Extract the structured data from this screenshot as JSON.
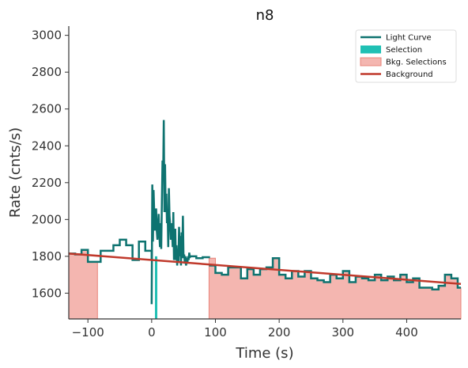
{
  "chart_data": {
    "type": "line",
    "title": "n8",
    "xlabel": "Time (s)",
    "ylabel": "Rate (cnts/s)",
    "xlim": [
      -130,
      485
    ],
    "ylim": [
      1460,
      3050
    ],
    "xticks": [
      -100,
      0,
      100,
      200,
      300,
      400
    ],
    "yticks": [
      1600,
      1800,
      2000,
      2200,
      2400,
      2600,
      2800,
      3000
    ],
    "grid": false,
    "legend_position": "top-right",
    "legend": [
      {
        "label": "Light Curve",
        "kind": "line",
        "color": "#0e7370"
      },
      {
        "label": "Selection",
        "kind": "patch",
        "color": "#20c0b4"
      },
      {
        "label": "Bkg. Selections",
        "kind": "patch",
        "color": "#f4b6b0"
      },
      {
        "label": "Background",
        "kind": "line",
        "color": "#c0392b"
      }
    ],
    "colors": {
      "light_curve": "#0e7370",
      "selection": "#20c0b4",
      "bkg_fill": "#f4b6b0",
      "bkg_edge": "#e8847a",
      "background": "#c0392b"
    },
    "series": [
      {
        "name": "Light Curve",
        "kind": "step",
        "coarse_steps": [
          [
            -130,
            1815
          ],
          [
            -120,
            1810
          ],
          [
            -110,
            1835
          ],
          [
            -100,
            1770
          ],
          [
            -90,
            1770
          ],
          [
            -80,
            1830
          ],
          [
            -60,
            1860
          ],
          [
            -50,
            1890
          ],
          [
            -40,
            1860
          ],
          [
            -30,
            1780
          ],
          [
            -20,
            1880
          ],
          [
            -10,
            1830
          ],
          [
            0,
            1785
          ]
        ],
        "fine_points": [
          [
            0,
            1540
          ],
          [
            1,
            2190
          ],
          [
            2,
            1880
          ],
          [
            3,
            2160
          ],
          [
            4,
            2040
          ],
          [
            5,
            1940
          ],
          [
            6,
            1990
          ],
          [
            7,
            2060
          ],
          [
            8,
            1940
          ],
          [
            9,
            1890
          ],
          [
            10,
            1960
          ],
          [
            11,
            2030
          ],
          [
            12,
            1920
          ],
          [
            13,
            1850
          ],
          [
            14,
            1980
          ],
          [
            15,
            1840
          ],
          [
            16,
            2090
          ],
          [
            17,
            2320
          ],
          [
            18,
            2230
          ],
          [
            19,
            2540
          ],
          [
            20,
            2040
          ],
          [
            21,
            2300
          ],
          [
            22,
            2040
          ],
          [
            23,
            2140
          ],
          [
            24,
            1980
          ],
          [
            25,
            2050
          ],
          [
            26,
            1850
          ],
          [
            27,
            2170
          ],
          [
            28,
            2020
          ],
          [
            29,
            1970
          ],
          [
            30,
            1890
          ],
          [
            31,
            1980
          ],
          [
            32,
            1930
          ],
          [
            33,
            1850
          ],
          [
            34,
            2040
          ],
          [
            35,
            1780
          ],
          [
            36,
            1820
          ],
          [
            37,
            1950
          ],
          [
            38,
            1780
          ],
          [
            39,
            1860
          ],
          [
            40,
            1750
          ],
          [
            41,
            1840
          ],
          [
            42,
            1770
          ],
          [
            43,
            1960
          ],
          [
            44,
            1800
          ],
          [
            45,
            1910
          ],
          [
            46,
            1750
          ],
          [
            47,
            1930
          ],
          [
            48,
            1790
          ],
          [
            49,
            2020
          ],
          [
            50,
            1790
          ],
          [
            51,
            1810
          ],
          [
            52,
            1760
          ],
          [
            53,
            1800
          ],
          [
            54,
            1750
          ],
          [
            55,
            1790
          ],
          [
            56,
            1760
          ],
          [
            57,
            1800
          ],
          [
            58,
            1780
          ],
          [
            59,
            1820
          ],
          [
            60,
            1790
          ]
        ],
        "mid_steps": [
          [
            60,
            1800
          ],
          [
            70,
            1790
          ],
          [
            80,
            1795
          ],
          [
            90,
            1790
          ]
        ],
        "late_steps": [
          [
            90,
            1750
          ],
          [
            100,
            1710
          ],
          [
            110,
            1700
          ],
          [
            120,
            1740
          ],
          [
            130,
            1740
          ],
          [
            140,
            1680
          ],
          [
            150,
            1730
          ],
          [
            160,
            1700
          ],
          [
            170,
            1730
          ],
          [
            180,
            1740
          ],
          [
            190,
            1790
          ],
          [
            200,
            1700
          ],
          [
            210,
            1680
          ],
          [
            220,
            1720
          ],
          [
            230,
            1690
          ],
          [
            240,
            1720
          ],
          [
            250,
            1680
          ],
          [
            260,
            1670
          ],
          [
            270,
            1660
          ],
          [
            280,
            1700
          ],
          [
            290,
            1680
          ],
          [
            300,
            1720
          ],
          [
            310,
            1660
          ],
          [
            320,
            1690
          ],
          [
            330,
            1680
          ],
          [
            340,
            1670
          ],
          [
            350,
            1700
          ],
          [
            360,
            1670
          ],
          [
            370,
            1690
          ],
          [
            380,
            1670
          ],
          [
            390,
            1700
          ],
          [
            400,
            1660
          ],
          [
            410,
            1680
          ],
          [
            420,
            1630
          ],
          [
            430,
            1630
          ],
          [
            440,
            1620
          ],
          [
            450,
            1640
          ],
          [
            460,
            1700
          ],
          [
            470,
            1680
          ],
          [
            480,
            1630
          ]
        ],
        "x_end": 485
      },
      {
        "name": "Background",
        "kind": "line",
        "points": [
          [
            -130,
            1815
          ],
          [
            485,
            1650
          ]
        ]
      }
    ],
    "selection": {
      "x": 7,
      "range": [
        7,
        9
      ]
    },
    "bkg_selections": [
      {
        "range": [
          -130,
          -85
        ]
      },
      {
        "range": [
          90,
          485
        ]
      }
    ]
  }
}
